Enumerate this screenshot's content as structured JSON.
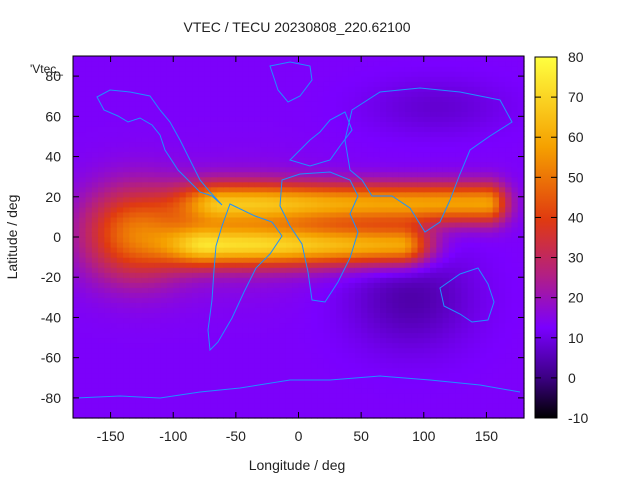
{
  "chart_data": {
    "type": "heatmap",
    "title": "VTEC / TECU 20230808_220.62100",
    "xlabel": "Longitude / deg",
    "ylabel": "Latitude / deg",
    "legend_key": "'Vtec_",
    "xlim": [
      -180,
      180
    ],
    "ylim": [
      -90,
      90
    ],
    "x_ticks": [
      -150,
      -100,
      -50,
      0,
      50,
      100,
      150
    ],
    "y_ticks": [
      -80,
      -60,
      -40,
      -20,
      0,
      20,
      40,
      60,
      80
    ],
    "colorbar": {
      "range": [
        -10,
        80
      ],
      "ticks": [
        -10,
        0,
        10,
        20,
        30,
        40,
        50,
        60,
        70,
        80
      ],
      "palette": [
        "#000000",
        "#3b0081",
        "#7a00ff",
        "#b42080",
        "#e03a10",
        "#f5a000",
        "#ffff40"
      ]
    },
    "background_vtec": 13,
    "features": [
      {
        "name": "equatorial-anomaly-crest-north",
        "lon_range": [
          -60,
          150
        ],
        "lat_center": 17,
        "peak_vtec": 58
      },
      {
        "name": "equatorial-anomaly-crest-south",
        "lon_range": [
          -70,
          80
        ],
        "lat_center": -4,
        "peak_vtec": 62
      },
      {
        "name": "pacific-evening-enhancement",
        "lon_center": -130,
        "lat_center": 2,
        "peak_vtec": 50
      },
      {
        "name": "south-indian-ocean-depletion",
        "lon_center": 90,
        "lat_center": -30,
        "min_vtec": 4
      },
      {
        "name": "north-asia-depletion",
        "lon_center": 110,
        "lat_center": 65,
        "min_vtec": 8
      }
    ]
  }
}
